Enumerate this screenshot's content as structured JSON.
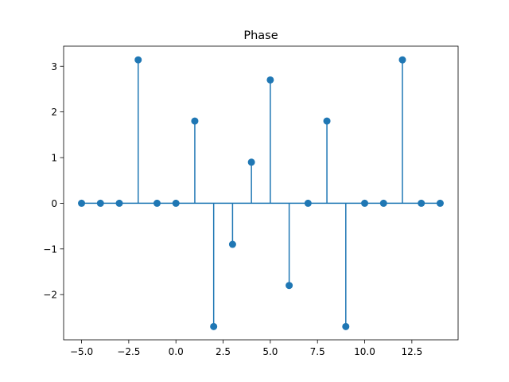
{
  "chart_data": {
    "type": "stem",
    "title": "Phase",
    "xlabel": "",
    "ylabel": "",
    "x": [
      -5,
      -4,
      -3,
      -2,
      -1,
      0,
      1,
      2,
      3,
      4,
      5,
      6,
      7,
      8,
      9,
      10,
      11,
      12,
      13,
      14
    ],
    "y": [
      0,
      0,
      0,
      3.14,
      0,
      0,
      1.8,
      -2.7,
      -0.9,
      0.9,
      2.7,
      -1.8,
      0,
      1.8,
      -2.7,
      0,
      0,
      3.14,
      0,
      0
    ],
    "xlim": [
      -5.95,
      14.95
    ],
    "ylim": [
      -2.99,
      3.44
    ],
    "xticks": [
      -5.0,
      -2.5,
      0.0,
      2.5,
      5.0,
      7.5,
      10.0,
      12.5
    ],
    "xtick_labels": [
      "−5.0",
      "−2.5",
      "0.0",
      "2.5",
      "5.0",
      "7.5",
      "10.0",
      "12.5"
    ],
    "yticks": [
      -2,
      -1,
      0,
      1,
      2,
      3
    ],
    "ytick_labels": [
      "−2",
      "−1",
      "0",
      "1",
      "2",
      "3"
    ],
    "grid": false,
    "color": "#1f77b4",
    "baseline": 0
  }
}
